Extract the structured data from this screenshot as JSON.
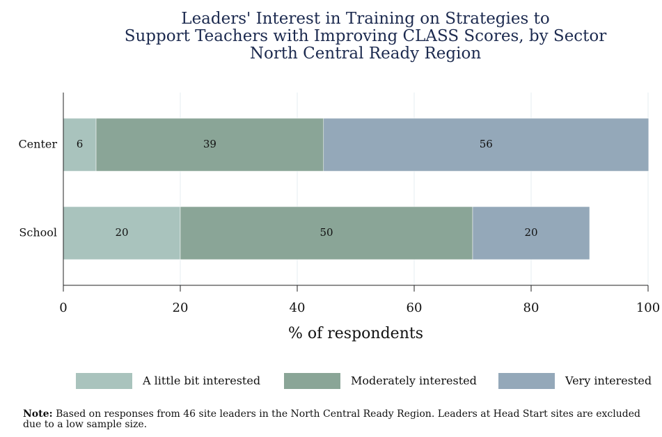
{
  "chart_data": {
    "type": "stacked-bar-horizontal",
    "title": [
      "Leaders' Interest in Training on Strategies to",
      "Support Teachers with Improving CLASS Scores, by Sector"
    ],
    "subtitle": "North Central Ready Region",
    "categories": [
      "Center",
      "School"
    ],
    "series": [
      {
        "name": "A little bit interested",
        "color": "#a9c3bd",
        "values": [
          5.6,
          20
        ],
        "value_labels": [
          "6",
          "20"
        ]
      },
      {
        "name": "Moderately interested",
        "color": "#8aa597",
        "values": [
          38.9,
          50
        ],
        "value_labels": [
          "39",
          "50"
        ]
      },
      {
        "name": "Very interested",
        "color": "#94a8b9",
        "values": [
          55.6,
          20
        ],
        "value_labels": [
          "56",
          "20"
        ]
      }
    ],
    "xlabel": "% of respondents",
    "xlim": [
      0,
      100
    ],
    "xticks": [
      0,
      20,
      40,
      60,
      80,
      100
    ],
    "grid": true,
    "legend": "bottom",
    "note_label": "Note:",
    "note": "Based on responses from 46 site leaders in the North Central Ready Region. Leaders at Head Start sites are excluded due to a low sample size."
  }
}
